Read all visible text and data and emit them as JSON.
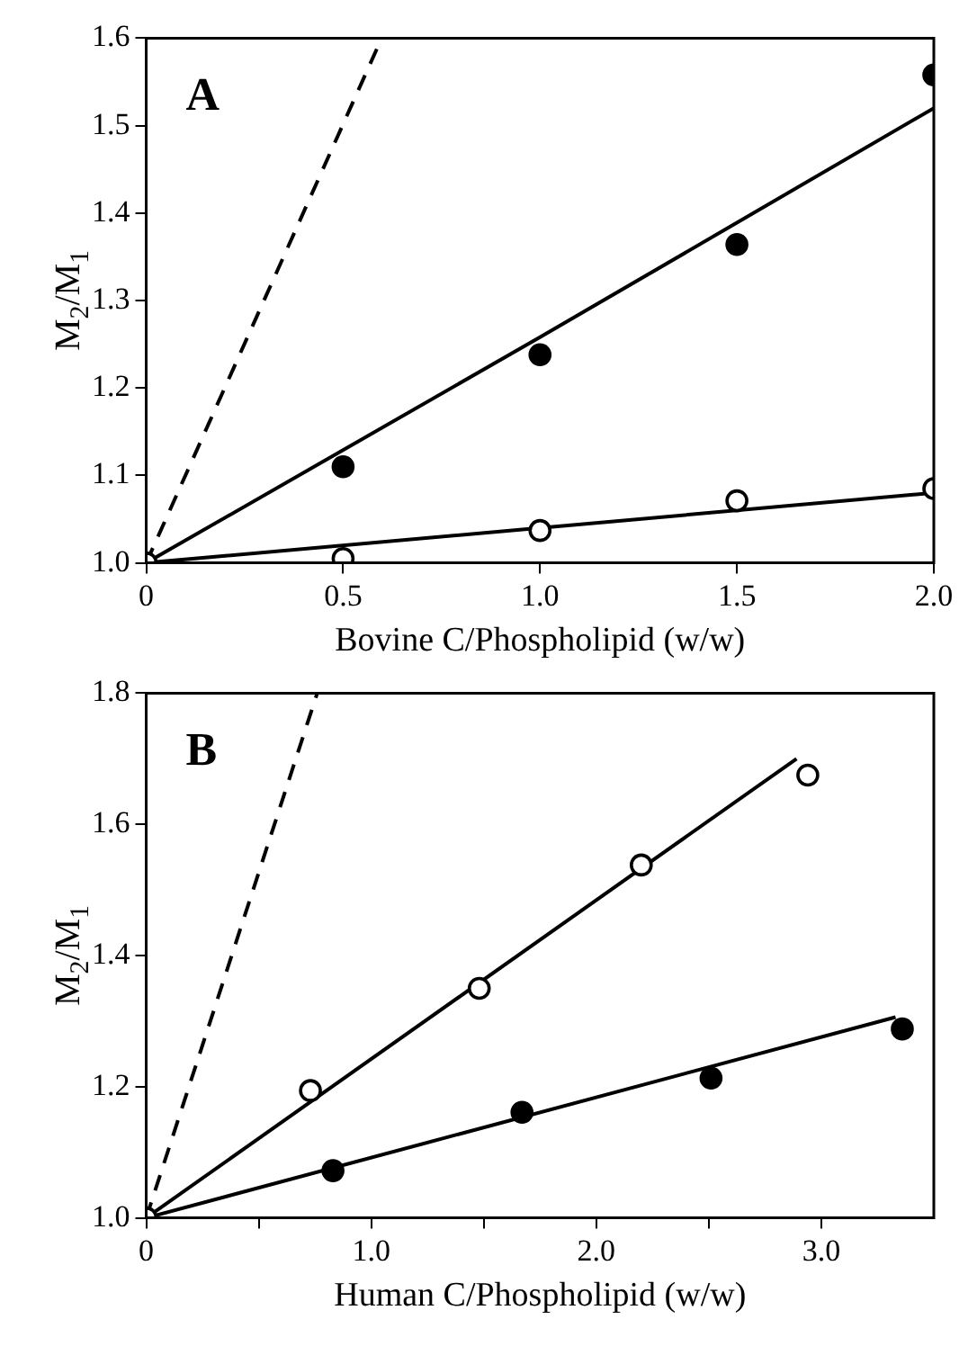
{
  "chart_data": [
    {
      "type": "scatter",
      "annotations": [
        "A"
      ],
      "xlabel": "Bovine C/Phospholipid (w/w)",
      "ylabel": "M$_{2}$/M$_{1}$",
      "xlim": [
        0,
        2
      ],
      "ylim": [
        1.0,
        1.6
      ],
      "xticks": [
        0,
        0.5,
        {
          "value": 1,
          "label": "1.0"
        },
        1.5,
        {
          "value": 2,
          "label": "2.0"
        }
      ],
      "yticks": [
        {
          "value": 1,
          "label": "1.0"
        },
        1.1,
        1.2,
        1.3,
        1.4,
        1.5,
        1.6
      ],
      "grid": false,
      "legend": false,
      "series": [
        {
          "type": "scatter",
          "color": "#000000",
          "marker": "circle",
          "x": [
            0.5,
            1,
            1.5,
            2
          ],
          "values": [
            1.11,
            1.238,
            1.364,
            1.558
          ]
        },
        {
          "type": "scatter",
          "color": "#ffffff",
          "marker": "circle",
          "x": [
            0,
            0.5,
            1,
            1.5,
            2
          ],
          "values": [
            1.0,
            1.005,
            1.037,
            1.071,
            1.085
          ]
        },
        {
          "type": "line",
          "color": "#000000",
          "marker": "none",
          "line_style": "solid",
          "x": [
            0,
            1,
            2
          ],
          "values": [
            1.0,
            1.258,
            1.52
          ]
        },
        {
          "type": "line",
          "color": "#000000",
          "marker": "none",
          "line_style": "solid",
          "x": [
            0,
            1,
            2
          ],
          "values": [
            1.0,
            1.04,
            1.08
          ]
        },
        {
          "type": "line",
          "color": "#000000",
          "marker": "none",
          "line_style": "dashed",
          "x": [
            0,
            0.598
          ],
          "values": [
            1.0,
            1.6
          ]
        }
      ]
    },
    {
      "type": "scatter",
      "annotations": [
        "B"
      ],
      "xlabel": "Human C/Phospholipid (w/w)",
      "ylabel": "M$_{2}$/M$_{1}$",
      "xlim": [
        0,
        3.5
      ],
      "ylim": [
        1.0,
        1.8
      ],
      "xticks": [
        0,
        {
          "value": 0.5,
          "label": null
        },
        {
          "value": 1,
          "label": "1.0"
        },
        {
          "value": 1.5,
          "label": null
        },
        {
          "value": 2,
          "label": "2.0"
        },
        {
          "value": 2.5,
          "label": null
        },
        {
          "value": 3,
          "label": "3.0"
        }
      ],
      "yticks": [
        {
          "value": 1,
          "label": "1.0"
        },
        1.2,
        1.4,
        1.6,
        1.8
      ],
      "grid": false,
      "legend": false,
      "series": [
        {
          "type": "scatter",
          "color": "#ffffff",
          "marker": "circle",
          "x": [
            0,
            0.73,
            1.48,
            2.2,
            2.94
          ],
          "values": [
            1.0,
            1.194,
            1.35,
            1.538,
            1.675
          ]
        },
        {
          "type": "scatter",
          "color": "#000000",
          "marker": "circle",
          "x": [
            0.83,
            1.67,
            2.51,
            3.36
          ],
          "values": [
            1.072,
            1.161,
            1.213,
            1.288
          ]
        },
        {
          "type": "line",
          "color": "#000000",
          "marker": "none",
          "line_style": "solid",
          "x": [
            0,
            2.89
          ],
          "values": [
            1.0,
            1.7
          ]
        },
        {
          "type": "line",
          "color": "#000000",
          "marker": "none",
          "line_style": "solid",
          "x": [
            0,
            3.33
          ],
          "values": [
            1.0,
            1.306
          ]
        },
        {
          "type": "line",
          "color": "#000000",
          "marker": "none",
          "line_style": "dashed",
          "x": [
            0,
            0.76
          ],
          "values": [
            1.0,
            1.8
          ]
        }
      ]
    }
  ]
}
